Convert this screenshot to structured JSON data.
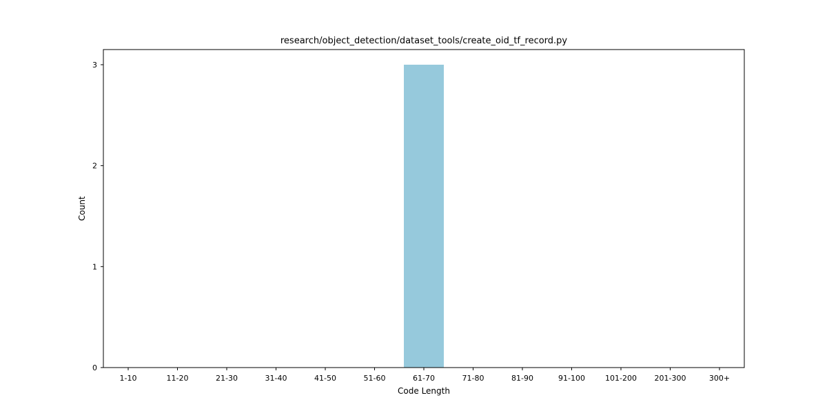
{
  "chart_data": {
    "type": "bar",
    "title": "research/object_detection/dataset_tools/create_oid_tf_record.py",
    "xlabel": "Code Length",
    "ylabel": "Count",
    "categories": [
      "1-10",
      "11-20",
      "21-30",
      "31-40",
      "41-50",
      "51-60",
      "61-70",
      "71-80",
      "81-90",
      "91-100",
      "101-200",
      "201-300",
      "300+"
    ],
    "values": [
      0,
      0,
      0,
      0,
      0,
      0,
      3,
      0,
      0,
      0,
      0,
      0,
      0
    ],
    "ylim": [
      0,
      3.15
    ],
    "yticks": [
      0,
      1,
      2,
      3
    ],
    "bar_color": "#96c9dc",
    "grid": false
  }
}
